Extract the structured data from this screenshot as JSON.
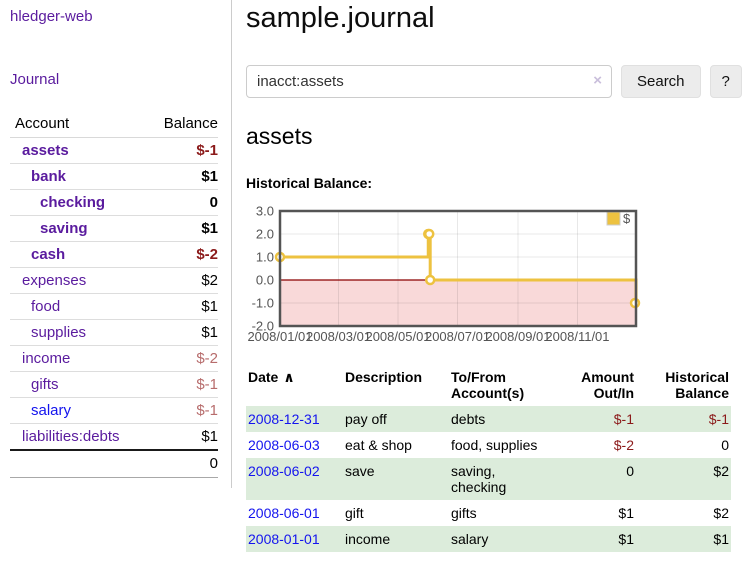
{
  "sidebar": {
    "brand": "hledger-web",
    "journal_label": "Journal",
    "accounts": {
      "col_account": "Account",
      "col_balance": "Balance",
      "rows": [
        {
          "name": "assets",
          "balance": "$-1",
          "level": 1,
          "strong": true,
          "name_style": "purple",
          "balance_style": "neg"
        },
        {
          "name": "bank",
          "balance": "$1",
          "level": 2,
          "strong": true,
          "name_style": "purple",
          "balance_style": "pos"
        },
        {
          "name": "checking",
          "balance": "0",
          "level": 3,
          "strong": true,
          "name_style": "purple",
          "balance_style": "pos"
        },
        {
          "name": "saving",
          "balance": "$1",
          "level": 3,
          "strong": true,
          "name_style": "purple",
          "balance_style": "pos"
        },
        {
          "name": "cash",
          "balance": "$-2",
          "level": 2,
          "strong": true,
          "name_style": "purple",
          "balance_style": "neg"
        },
        {
          "name": "expenses",
          "balance": "$2",
          "level": 1,
          "strong": false,
          "name_style": "purple",
          "balance_style": "pos"
        },
        {
          "name": "food",
          "balance": "$1",
          "level": 2,
          "strong": false,
          "name_style": "purple",
          "balance_style": "pos"
        },
        {
          "name": "supplies",
          "balance": "$1",
          "level": 2,
          "strong": false,
          "name_style": "purple",
          "balance_style": "pos"
        },
        {
          "name": "income",
          "balance": "$-2",
          "level": 1,
          "strong": false,
          "name_style": "purple",
          "balance_style": "neg_soft"
        },
        {
          "name": "gifts",
          "balance": "$-1",
          "level": 2,
          "strong": false,
          "name_style": "purple",
          "balance_style": "neg_soft"
        },
        {
          "name": "salary",
          "balance": "$-1",
          "level": 2,
          "strong": false,
          "name_style": "blue",
          "balance_style": "neg_soft"
        },
        {
          "name": "liabilities:debts",
          "balance": "$1",
          "level": 1,
          "strong": false,
          "name_style": "purple",
          "balance_style": "pos"
        }
      ],
      "total": "0"
    }
  },
  "header": {
    "title": "sample.journal"
  },
  "search": {
    "value": "inacct:assets",
    "clear_icon": "×",
    "button_label": "Search",
    "help_label": "?"
  },
  "account_page": {
    "title": "assets",
    "chart_label": "Historical Balance:"
  },
  "chart_data": {
    "type": "line",
    "title": "Historical Balance",
    "step": true,
    "series": [
      {
        "name": "$",
        "points": [
          {
            "date": "2008-01-01",
            "value": 1
          },
          {
            "date": "2008-06-01",
            "value": 2
          },
          {
            "date": "2008-06-02",
            "value": 2
          },
          {
            "date": "2008-06-03",
            "value": 0
          },
          {
            "date": "2008-12-31",
            "value": -1
          }
        ]
      }
    ],
    "xlim": [
      "2008-01-01",
      "2008-12-31"
    ],
    "ylim": [
      -2,
      3
    ],
    "x_ticks": [
      {
        "date": "2008-01-01",
        "label": "2008/01/01"
      },
      {
        "date": "2008-03-01",
        "label": "2008/03/01"
      },
      {
        "date": "2008-05-01",
        "label": "2008/05/01"
      },
      {
        "date": "2008-07-01",
        "label": "2008/07/01"
      },
      {
        "date": "2008-09-01",
        "label": "2008/09/01"
      },
      {
        "date": "2008-11-01",
        "label": "2008/11/01"
      }
    ],
    "y_ticks": [
      "3.0",
      "2.0",
      "1.0",
      "0.0",
      "-1.0",
      "-2.0"
    ],
    "legend": {
      "label": "$",
      "position": "top-right"
    },
    "grid": true,
    "colors": {
      "line": "#edc240",
      "marker_fill": "#ffffff",
      "negative_fill": "#f9d9d9",
      "zero_line": "#8b0000",
      "frame": "#545454",
      "gridline": "#e3e3e3",
      "tick_text": "#545454"
    }
  },
  "register": {
    "sort_arrow": "∧",
    "columns": [
      {
        "label": "Date"
      },
      {
        "label": "Description"
      },
      {
        "label": "To/From Account(s)"
      },
      {
        "label": "Amount Out/In"
      },
      {
        "label": "Historical Balance"
      }
    ],
    "rows": [
      {
        "date": "2008-12-31",
        "description": "pay off",
        "accounts": "debts",
        "amount": "$-1",
        "balance": "$-1"
      },
      {
        "date": "2008-06-03",
        "description": "eat & shop",
        "accounts": "food, supplies",
        "amount": "$-2",
        "balance": "0"
      },
      {
        "date": "2008-06-02",
        "description": "save",
        "accounts": "saving, checking",
        "amount": "0",
        "balance": "$2"
      },
      {
        "date": "2008-06-01",
        "description": "gift",
        "accounts": "gifts",
        "amount": "$1",
        "balance": "$2"
      },
      {
        "date": "2008-01-01",
        "description": "income",
        "accounts": "salary",
        "amount": "$1",
        "balance": "$1"
      }
    ]
  }
}
